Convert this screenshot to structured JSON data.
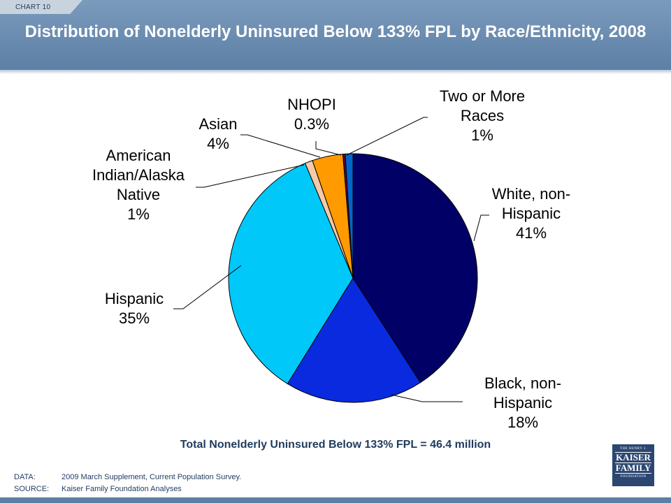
{
  "header": {
    "tab_label": "CHART 10",
    "title": "Distribution of Nonelderly Uninsured Below 133% FPL by Race/Ethnicity, 2008"
  },
  "chart_data": {
    "type": "pie",
    "title": "Distribution of Nonelderly Uninsured Below 133% FPL by Race/Ethnicity, 2008",
    "slices": [
      {
        "label_lines": [
          "White, non-",
          "Hispanic",
          "41%"
        ],
        "value": 41,
        "color": "#000066"
      },
      {
        "label_lines": [
          "Black, non-",
          "Hispanic",
          "18%"
        ],
        "value": 18,
        "color": "#0a2ae0"
      },
      {
        "label_lines": [
          "Hispanic",
          "35%"
        ],
        "value": 35,
        "color": "#00c8f8"
      },
      {
        "label_lines": [
          "American",
          "Indian/Alaska",
          "Native",
          "1%"
        ],
        "value": 1,
        "color": "#f6c9a8"
      },
      {
        "label_lines": [
          "Asian",
          "4%"
        ],
        "value": 4,
        "color": "#ff9a00"
      },
      {
        "label_lines": [
          "NHOPI",
          "0.3%"
        ],
        "value": 0.3,
        "color": "#660033"
      },
      {
        "label_lines": [
          "Two or More",
          "Races",
          "1%"
        ],
        "value": 1,
        "color": "#0066cc"
      }
    ],
    "start": "12 o'clock",
    "direction": "clockwise",
    "legend": "none"
  },
  "total_text": "Total Nonelderly Uninsured Below 133% FPL = 46.4 million",
  "footer": {
    "data_key": "DATA:",
    "data_value": "2009 March Supplement, Current Population Survey.",
    "source_key": "SOURCE:",
    "source_value": "Kaiser Family Foundation Analyses"
  },
  "logo": {
    "line1": "THE HENRY J.",
    "line2": "KAISER",
    "line3": "FAMILY",
    "line4": "FOUNDATION"
  }
}
